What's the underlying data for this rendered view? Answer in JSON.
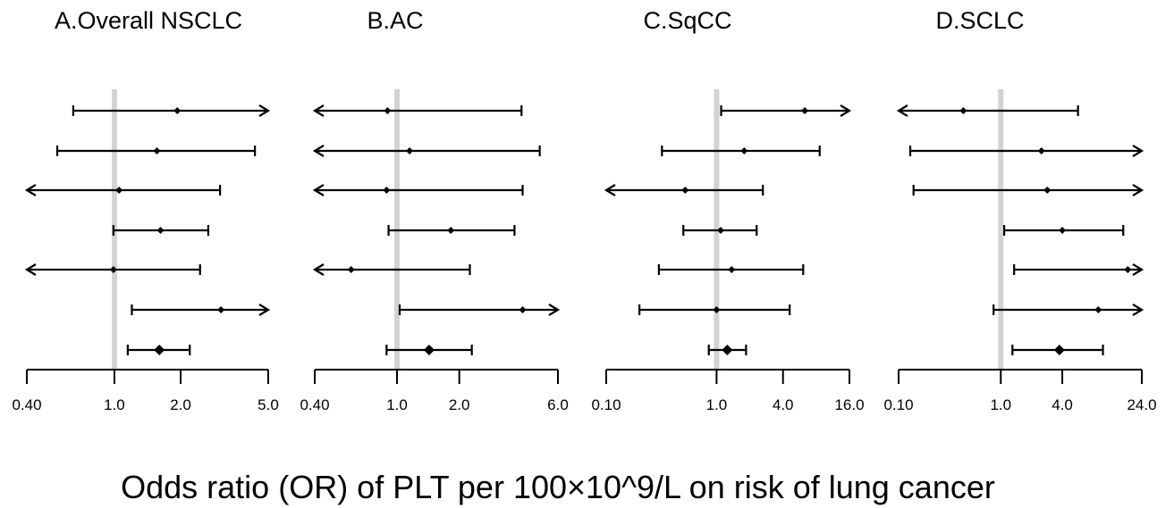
{
  "figure": {
    "xlabel": "Odds ratio (OR) of PLT per 100×10^9/L on risk of lung cancer"
  },
  "chart_data": [
    {
      "type": "scatter",
      "title": "A.Overall NSCLC",
      "scale": "log",
      "xlim": [
        0.4,
        5.0
      ],
      "reference_line": 1.0,
      "ticks": [
        0.4,
        1.0,
        2.0,
        5.0
      ],
      "tick_labels": [
        "0.40",
        "1.0",
        "2.0",
        "5.0"
      ],
      "rows": [
        {
          "or": 1.93,
          "lower": 0.65,
          "upper": 5.0,
          "arrow_low": false,
          "arrow_high": true,
          "pooled": false
        },
        {
          "or": 1.56,
          "lower": 0.55,
          "upper": 4.35,
          "arrow_low": false,
          "arrow_high": false,
          "pooled": false
        },
        {
          "or": 1.05,
          "lower": 0.4,
          "upper": 3.02,
          "arrow_low": true,
          "arrow_high": false,
          "pooled": false
        },
        {
          "or": 1.62,
          "lower": 0.99,
          "upper": 2.67,
          "arrow_low": false,
          "arrow_high": false,
          "pooled": false
        },
        {
          "or": 0.99,
          "lower": 0.4,
          "upper": 2.45,
          "arrow_low": true,
          "arrow_high": false,
          "pooled": false
        },
        {
          "or": 3.05,
          "lower": 1.2,
          "upper": 5.0,
          "arrow_low": false,
          "arrow_high": true,
          "pooled": false
        },
        {
          "or": 1.6,
          "lower": 1.15,
          "upper": 2.2,
          "arrow_low": false,
          "arrow_high": false,
          "pooled": true
        }
      ]
    },
    {
      "type": "scatter",
      "title": "B.AC",
      "scale": "log",
      "xlim": [
        0.4,
        6.0
      ],
      "reference_line": 1.0,
      "ticks": [
        0.4,
        1.0,
        2.0,
        6.0
      ],
      "tick_labels": [
        "0.40",
        "1.0",
        "2.0",
        "6.0"
      ],
      "rows": [
        {
          "or": 0.9,
          "lower": 0.4,
          "upper": 4.0,
          "arrow_low": true,
          "arrow_high": false,
          "pooled": false
        },
        {
          "or": 1.15,
          "lower": 0.4,
          "upper": 4.9,
          "arrow_low": true,
          "arrow_high": false,
          "pooled": false
        },
        {
          "or": 0.89,
          "lower": 0.4,
          "upper": 4.05,
          "arrow_low": true,
          "arrow_high": false,
          "pooled": false
        },
        {
          "or": 1.82,
          "lower": 0.91,
          "upper": 3.7,
          "arrow_low": false,
          "arrow_high": false,
          "pooled": false
        },
        {
          "or": 0.6,
          "lower": 0.4,
          "upper": 2.25,
          "arrow_low": true,
          "arrow_high": false,
          "pooled": false
        },
        {
          "or": 4.05,
          "lower": 1.03,
          "upper": 6.0,
          "arrow_low": false,
          "arrow_high": true,
          "pooled": false
        },
        {
          "or": 1.43,
          "lower": 0.89,
          "upper": 2.3,
          "arrow_low": false,
          "arrow_high": false,
          "pooled": true
        }
      ]
    },
    {
      "type": "scatter",
      "title": "C.SqCC",
      "scale": "log",
      "xlim": [
        0.1,
        16.0
      ],
      "reference_line": 1.0,
      "ticks": [
        0.1,
        1.0,
        4.0,
        16.0
      ],
      "tick_labels": [
        "0.10",
        "1.0",
        "4.0",
        "16.0"
      ],
      "rows": [
        {
          "or": 6.3,
          "lower": 1.1,
          "upper": 16.0,
          "arrow_low": false,
          "arrow_high": true,
          "pooled": false
        },
        {
          "or": 1.78,
          "lower": 0.32,
          "upper": 8.6,
          "arrow_low": false,
          "arrow_high": false,
          "pooled": false
        },
        {
          "or": 0.52,
          "lower": 0.1,
          "upper": 2.63,
          "arrow_low": true,
          "arrow_high": false,
          "pooled": false
        },
        {
          "or": 1.09,
          "lower": 0.5,
          "upper": 2.31,
          "arrow_low": false,
          "arrow_high": false,
          "pooled": false
        },
        {
          "or": 1.37,
          "lower": 0.3,
          "upper": 6.1,
          "arrow_low": false,
          "arrow_high": false,
          "pooled": false
        },
        {
          "or": 1.0,
          "lower": 0.2,
          "upper": 4.6,
          "arrow_low": false,
          "arrow_high": false,
          "pooled": false
        },
        {
          "or": 1.25,
          "lower": 0.85,
          "upper": 1.85,
          "arrow_low": false,
          "arrow_high": false,
          "pooled": true
        }
      ]
    },
    {
      "type": "scatter",
      "title": "D.SCLC",
      "scale": "log",
      "xlim": [
        0.1,
        24.0
      ],
      "reference_line": 1.0,
      "ticks": [
        0.1,
        1.0,
        4.0,
        24.0
      ],
      "tick_labels": [
        "0.10",
        "1.0",
        "4.0",
        "24.0"
      ],
      "rows": [
        {
          "or": 0.43,
          "lower": 0.1,
          "upper": 5.7,
          "arrow_low": true,
          "arrow_high": false,
          "pooled": false
        },
        {
          "or": 2.5,
          "lower": 0.13,
          "upper": 24.0,
          "arrow_low": false,
          "arrow_high": true,
          "pooled": false
        },
        {
          "or": 2.85,
          "lower": 0.14,
          "upper": 24.0,
          "arrow_low": false,
          "arrow_high": true,
          "pooled": false
        },
        {
          "or": 4.0,
          "lower": 1.08,
          "upper": 15.8,
          "arrow_low": false,
          "arrow_high": false,
          "pooled": false
        },
        {
          "or": 17.5,
          "lower": 1.35,
          "upper": 24.0,
          "arrow_low": false,
          "arrow_high": true,
          "pooled": false
        },
        {
          "or": 9.0,
          "lower": 0.85,
          "upper": 24.0,
          "arrow_low": false,
          "arrow_high": true,
          "pooled": false
        },
        {
          "or": 3.75,
          "lower": 1.3,
          "upper": 10.0,
          "arrow_low": false,
          "arrow_high": false,
          "pooled": true
        }
      ]
    }
  ]
}
